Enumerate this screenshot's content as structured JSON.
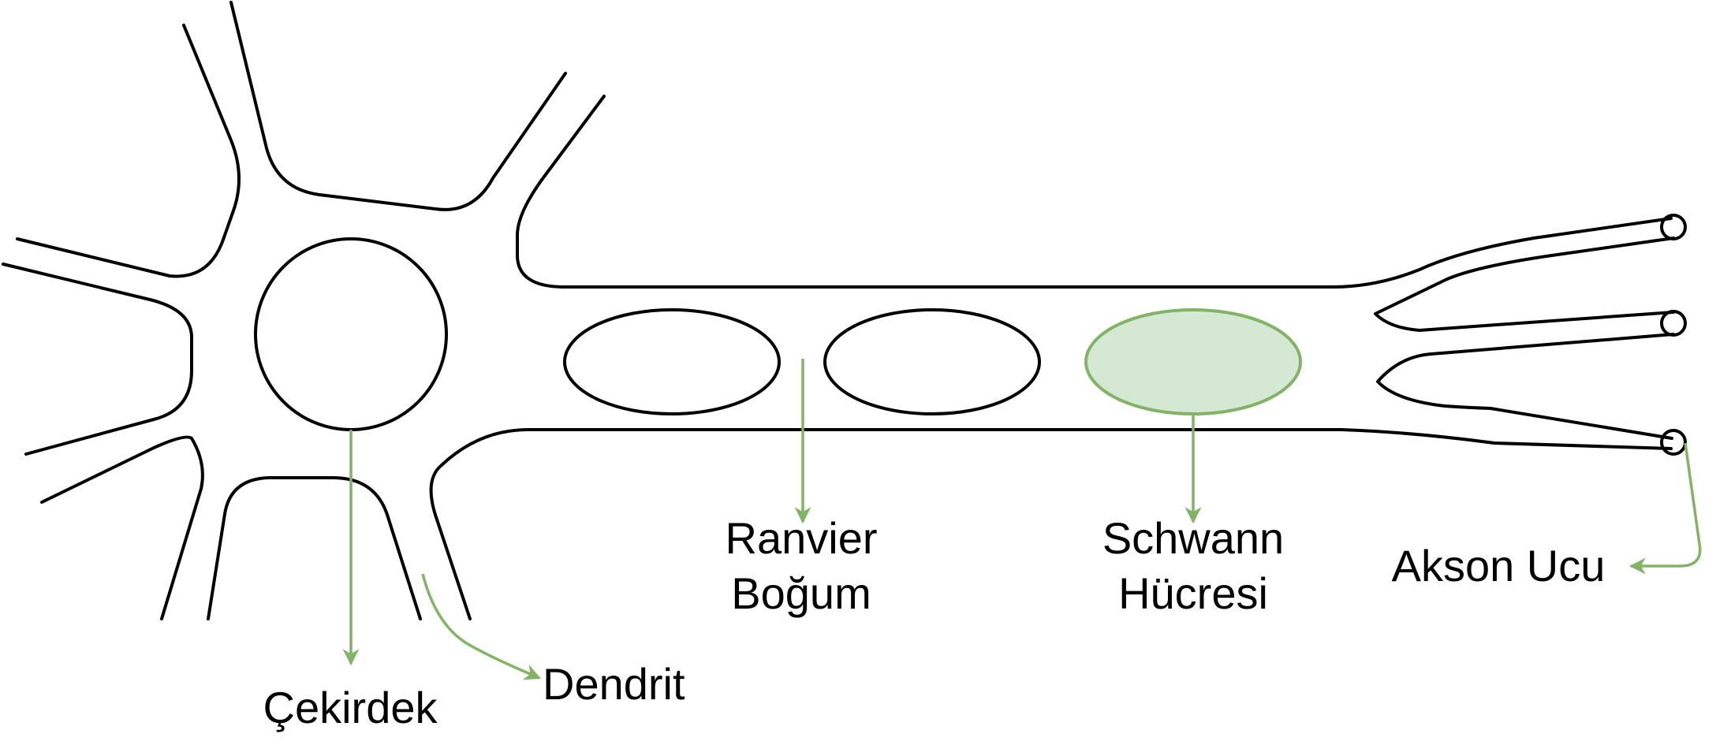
{
  "colors": {
    "outline": "#000000",
    "accent": "#82b366",
    "highlight_fill": "#d5e8d4"
  },
  "labels": {
    "nucleus": "Çekirdek",
    "dendrite": "Dendrit",
    "ranvier": [
      "Ranvier",
      "Boğum"
    ],
    "schwann": [
      "Schwann",
      "Hücresi"
    ],
    "axon_terminal": "Akson Ucu"
  }
}
